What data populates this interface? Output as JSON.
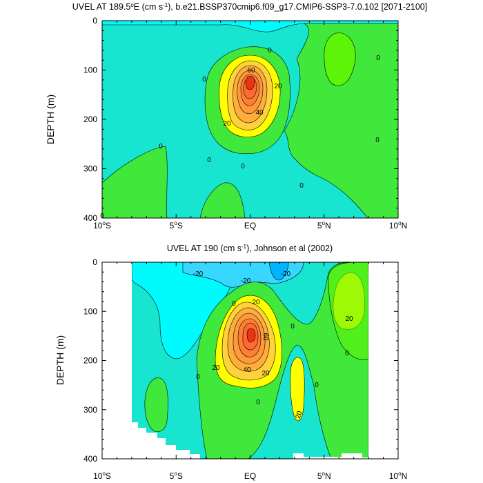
{
  "chart_data": [
    {
      "type": "contour",
      "title": "UVEL AT 189.5°E (cm s⁻¹), b.e21.BSSP370cmip6.f09_g17.CMIP6-SSP3-7.0.102 [2071-2100]",
      "xlabel": "",
      "ylabel": "DEPTH (m)",
      "x_tick_labels": [
        "10°S",
        "5°S",
        "EQ",
        "5°N",
        "10°N"
      ],
      "y_tick_labels": [
        "0",
        "100",
        "200",
        "300",
        "400"
      ],
      "xlim": [
        -10,
        10
      ],
      "ylim": [
        400,
        0
      ],
      "contour_interval": 10,
      "contour_labels": [
        "0",
        "0",
        "0",
        "0",
        "0",
        "0",
        "0",
        "0",
        "0",
        "20",
        "20",
        "40",
        "60"
      ],
      "features": [
        {
          "name": "equatorial undercurrent core",
          "x": 0,
          "depth": 125,
          "max_value": 85
        },
        {
          "name": "north eastward band",
          "x": 6,
          "depth": 60,
          "value": 10
        },
        {
          "name": "southwest deep eastward",
          "x": -9,
          "depth": 380,
          "value": 10
        }
      ]
    },
    {
      "type": "contour",
      "title": "UVEL AT 190 (cm s⁻¹), Johnson et al (2002)",
      "xlabel": "",
      "ylabel": "DEPTH (m)",
      "x_tick_labels": [
        "10°S",
        "5°S",
        "EQ",
        "5°N",
        "10°N"
      ],
      "y_tick_labels": [
        "0",
        "100",
        "200",
        "300",
        "400"
      ],
      "xlim": [
        -10,
        10
      ],
      "ylim": [
        400,
        0
      ],
      "data_extent": [
        -8,
        8
      ],
      "contour_interval": 10,
      "contour_labels": [
        "-20",
        "-20",
        "-20",
        "20",
        "0",
        "60",
        "20",
        "40",
        "20",
        "0",
        "0",
        "20",
        "0",
        "0",
        "20",
        "0"
      ],
      "features": [
        {
          "name": "equatorial undercurrent core",
          "x": 0,
          "depth": 150,
          "max_value": 85
        },
        {
          "name": "surface westward flow",
          "x": -1,
          "depth": 20,
          "min_value": -30
        },
        {
          "name": "north subsurface eastward",
          "x": 6.5,
          "depth": 80,
          "value": 25
        },
        {
          "name": "deep eastward jet north",
          "x": 3.3,
          "depth": 270,
          "value": 25
        }
      ]
    }
  ]
}
